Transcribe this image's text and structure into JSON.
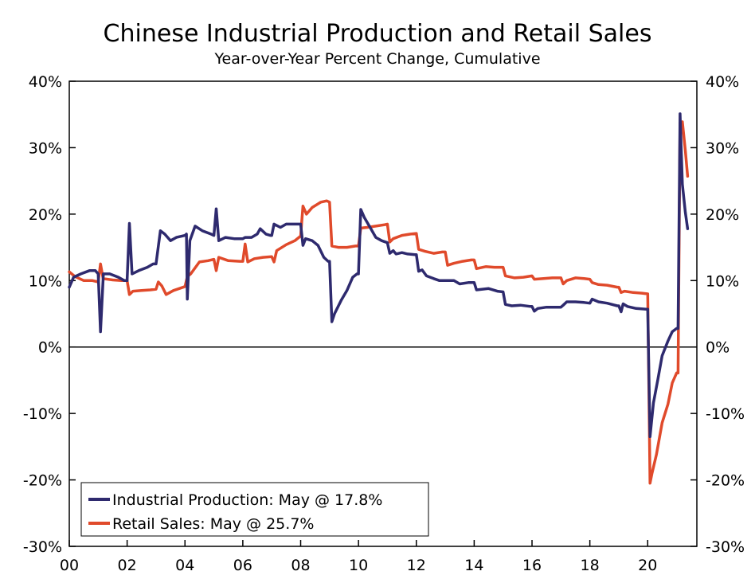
{
  "chart_data": {
    "type": "line",
    "title": "Chinese Industrial Production and Retail Sales",
    "subtitle": "Year-over-Year Percent Change, Cumulative",
    "xlabel": "",
    "ylabel": "",
    "xlim": [
      2000.0,
      2021.7
    ],
    "ylim": [
      -30,
      40
    ],
    "x_ticks": [
      {
        "value": 2000,
        "label": "00"
      },
      {
        "value": 2002,
        "label": "02"
      },
      {
        "value": 2004,
        "label": "04"
      },
      {
        "value": 2006,
        "label": "06"
      },
      {
        "value": 2008,
        "label": "08"
      },
      {
        "value": 2010,
        "label": "10"
      },
      {
        "value": 2012,
        "label": "12"
      },
      {
        "value": 2014,
        "label": "14"
      },
      {
        "value": 2016,
        "label": "16"
      },
      {
        "value": 2018,
        "label": "18"
      },
      {
        "value": 2020,
        "label": "20"
      }
    ],
    "y_ticks": [
      {
        "value": 40,
        "label": "40%"
      },
      {
        "value": 30,
        "label": "30%"
      },
      {
        "value": 20,
        "label": "20%"
      },
      {
        "value": 10,
        "label": "10%"
      },
      {
        "value": 0,
        "label": "0%"
      },
      {
        "value": -10,
        "label": "-10%"
      },
      {
        "value": -20,
        "label": "-20%"
      },
      {
        "value": -30,
        "label": "-30%"
      }
    ],
    "y_ticks_right": true,
    "grid": false,
    "zero_line": true,
    "legend_position": "bottom-left",
    "series": [
      {
        "name": "Industrial Production: May @ 17.8%",
        "color": "#2e2a6e",
        "points": [
          [
            2000.0,
            9.0
          ],
          [
            2000.15,
            10.5
          ],
          [
            2000.4,
            11.0
          ],
          [
            2000.7,
            11.5
          ],
          [
            2000.9,
            11.5
          ],
          [
            2001.0,
            11.0
          ],
          [
            2001.08,
            2.3
          ],
          [
            2001.18,
            11.0
          ],
          [
            2001.4,
            11.0
          ],
          [
            2001.7,
            10.5
          ],
          [
            2001.9,
            10.0
          ],
          [
            2002.0,
            10.0
          ],
          [
            2002.08,
            18.6
          ],
          [
            2002.17,
            11.0
          ],
          [
            2002.4,
            11.5
          ],
          [
            2002.7,
            12.0
          ],
          [
            2002.9,
            12.5
          ],
          [
            2003.0,
            12.5
          ],
          [
            2003.15,
            17.5
          ],
          [
            2003.3,
            17.0
          ],
          [
            2003.5,
            16.0
          ],
          [
            2003.7,
            16.5
          ],
          [
            2003.9,
            16.7
          ],
          [
            2004.0,
            16.8
          ],
          [
            2004.05,
            17.0
          ],
          [
            2004.08,
            7.2
          ],
          [
            2004.17,
            16.0
          ],
          [
            2004.35,
            18.2
          ],
          [
            2004.6,
            17.5
          ],
          [
            2004.9,
            17.0
          ],
          [
            2005.0,
            16.8
          ],
          [
            2005.08,
            20.8
          ],
          [
            2005.17,
            16.0
          ],
          [
            2005.4,
            16.5
          ],
          [
            2005.7,
            16.3
          ],
          [
            2006.0,
            16.3
          ],
          [
            2006.08,
            16.5
          ],
          [
            2006.3,
            16.5
          ],
          [
            2006.5,
            17.0
          ],
          [
            2006.6,
            17.8
          ],
          [
            2006.8,
            17.0
          ],
          [
            2006.95,
            16.8
          ],
          [
            2007.0,
            16.8
          ],
          [
            2007.08,
            18.5
          ],
          [
            2007.3,
            18.0
          ],
          [
            2007.5,
            18.5
          ],
          [
            2007.8,
            18.5
          ],
          [
            2008.0,
            18.5
          ],
          [
            2008.08,
            15.3
          ],
          [
            2008.17,
            16.3
          ],
          [
            2008.4,
            16.0
          ],
          [
            2008.6,
            15.3
          ],
          [
            2008.8,
            13.5
          ],
          [
            2008.95,
            12.9
          ],
          [
            2009.0,
            12.9
          ],
          [
            2009.08,
            3.8
          ],
          [
            2009.17,
            5.0
          ],
          [
            2009.4,
            7.0
          ],
          [
            2009.6,
            8.5
          ],
          [
            2009.8,
            10.5
          ],
          [
            2009.95,
            11.0
          ],
          [
            2010.0,
            11.0
          ],
          [
            2010.08,
            20.7
          ],
          [
            2010.2,
            19.5
          ],
          [
            2010.4,
            18.0
          ],
          [
            2010.6,
            16.5
          ],
          [
            2010.8,
            16.0
          ],
          [
            2011.0,
            15.7
          ],
          [
            2011.08,
            14.1
          ],
          [
            2011.2,
            14.5
          ],
          [
            2011.3,
            14.0
          ],
          [
            2011.5,
            14.2
          ],
          [
            2011.7,
            14.0
          ],
          [
            2011.95,
            13.9
          ],
          [
            2012.0,
            13.9
          ],
          [
            2012.08,
            11.4
          ],
          [
            2012.2,
            11.6
          ],
          [
            2012.35,
            10.7
          ],
          [
            2012.6,
            10.3
          ],
          [
            2012.8,
            10.0
          ],
          [
            2013.0,
            10.0
          ],
          [
            2013.3,
            10.0
          ],
          [
            2013.5,
            9.5
          ],
          [
            2013.8,
            9.7
          ],
          [
            2014.0,
            9.7
          ],
          [
            2014.08,
            8.6
          ],
          [
            2014.5,
            8.8
          ],
          [
            2014.8,
            8.4
          ],
          [
            2015.0,
            8.3
          ],
          [
            2015.08,
            6.4
          ],
          [
            2015.3,
            6.2
          ],
          [
            2015.6,
            6.3
          ],
          [
            2015.95,
            6.1
          ],
          [
            2016.0,
            6.1
          ],
          [
            2016.08,
            5.4
          ],
          [
            2016.2,
            5.8
          ],
          [
            2016.5,
            6.0
          ],
          [
            2016.8,
            6.0
          ],
          [
            2017.0,
            6.0
          ],
          [
            2017.08,
            6.3
          ],
          [
            2017.2,
            6.8
          ],
          [
            2017.5,
            6.8
          ],
          [
            2017.8,
            6.7
          ],
          [
            2018.0,
            6.6
          ],
          [
            2018.08,
            7.2
          ],
          [
            2018.3,
            6.8
          ],
          [
            2018.6,
            6.6
          ],
          [
            2018.95,
            6.2
          ],
          [
            2019.0,
            6.2
          ],
          [
            2019.08,
            5.3
          ],
          [
            2019.15,
            6.5
          ],
          [
            2019.3,
            6.1
          ],
          [
            2019.6,
            5.8
          ],
          [
            2019.95,
            5.7
          ],
          [
            2020.0,
            5.7
          ],
          [
            2020.08,
            -13.5
          ],
          [
            2020.2,
            -8.4
          ],
          [
            2020.35,
            -4.9
          ],
          [
            2020.5,
            -1.3
          ],
          [
            2020.7,
            0.9
          ],
          [
            2020.85,
            2.3
          ],
          [
            2021.0,
            2.8
          ],
          [
            2021.05,
            2.8
          ],
          [
            2021.12,
            35.1
          ],
          [
            2021.2,
            24.5
          ],
          [
            2021.3,
            20.3
          ],
          [
            2021.38,
            17.8
          ]
        ]
      },
      {
        "name": "Retail Sales: May @ 25.7%",
        "color": "#e04a2b",
        "points": [
          [
            2000.0,
            11.3
          ],
          [
            2000.2,
            10.6
          ],
          [
            2000.5,
            10.0
          ],
          [
            2000.8,
            10.0
          ],
          [
            2001.0,
            9.8
          ],
          [
            2001.08,
            12.5
          ],
          [
            2001.17,
            10.3
          ],
          [
            2001.5,
            10.1
          ],
          [
            2001.8,
            10.0
          ],
          [
            2002.0,
            10.0
          ],
          [
            2002.08,
            7.9
          ],
          [
            2002.2,
            8.4
          ],
          [
            2002.5,
            8.5
          ],
          [
            2002.8,
            8.6
          ],
          [
            2003.0,
            8.7
          ],
          [
            2003.08,
            9.8
          ],
          [
            2003.2,
            9.2
          ],
          [
            2003.35,
            7.9
          ],
          [
            2003.6,
            8.5
          ],
          [
            2003.8,
            8.8
          ],
          [
            2004.0,
            9.1
          ],
          [
            2004.08,
            10.6
          ],
          [
            2004.2,
            11.0
          ],
          [
            2004.5,
            12.8
          ],
          [
            2004.8,
            13.0
          ],
          [
            2005.0,
            13.2
          ],
          [
            2005.08,
            11.5
          ],
          [
            2005.17,
            13.5
          ],
          [
            2005.5,
            13.0
          ],
          [
            2005.9,
            12.9
          ],
          [
            2006.0,
            12.9
          ],
          [
            2006.08,
            15.5
          ],
          [
            2006.17,
            12.8
          ],
          [
            2006.4,
            13.3
          ],
          [
            2006.7,
            13.5
          ],
          [
            2007.0,
            13.6
          ],
          [
            2007.08,
            12.8
          ],
          [
            2007.17,
            14.5
          ],
          [
            2007.5,
            15.4
          ],
          [
            2007.8,
            16.0
          ],
          [
            2008.0,
            16.7
          ],
          [
            2008.08,
            21.2
          ],
          [
            2008.2,
            20.0
          ],
          [
            2008.4,
            21.0
          ],
          [
            2008.7,
            21.8
          ],
          [
            2008.9,
            22.0
          ],
          [
            2009.0,
            21.8
          ],
          [
            2009.08,
            15.2
          ],
          [
            2009.3,
            15.0
          ],
          [
            2009.6,
            15.0
          ],
          [
            2009.9,
            15.2
          ],
          [
            2010.0,
            15.2
          ],
          [
            2010.08,
            17.9
          ],
          [
            2010.3,
            18.0
          ],
          [
            2010.6,
            18.2
          ],
          [
            2010.9,
            18.4
          ],
          [
            2011.0,
            18.5
          ],
          [
            2011.08,
            15.8
          ],
          [
            2011.2,
            16.3
          ],
          [
            2011.5,
            16.8
          ],
          [
            2011.8,
            17.0
          ],
          [
            2012.0,
            17.1
          ],
          [
            2012.08,
            14.7
          ],
          [
            2012.3,
            14.4
          ],
          [
            2012.6,
            14.1
          ],
          [
            2012.9,
            14.3
          ],
          [
            2013.0,
            14.3
          ],
          [
            2013.08,
            12.3
          ],
          [
            2013.3,
            12.6
          ],
          [
            2013.6,
            12.9
          ],
          [
            2013.9,
            13.1
          ],
          [
            2014.0,
            13.1
          ],
          [
            2014.08,
            11.8
          ],
          [
            2014.4,
            12.1
          ],
          [
            2014.7,
            12.0
          ],
          [
            2015.0,
            12.0
          ],
          [
            2015.08,
            10.7
          ],
          [
            2015.4,
            10.4
          ],
          [
            2015.7,
            10.5
          ],
          [
            2016.0,
            10.7
          ],
          [
            2016.08,
            10.2
          ],
          [
            2016.4,
            10.3
          ],
          [
            2016.7,
            10.4
          ],
          [
            2017.0,
            10.4
          ],
          [
            2017.08,
            9.5
          ],
          [
            2017.2,
            10.0
          ],
          [
            2017.5,
            10.4
          ],
          [
            2017.8,
            10.3
          ],
          [
            2018.0,
            10.2
          ],
          [
            2018.08,
            9.7
          ],
          [
            2018.3,
            9.4
          ],
          [
            2018.6,
            9.3
          ],
          [
            2018.95,
            9.0
          ],
          [
            2019.0,
            9.0
          ],
          [
            2019.08,
            8.2
          ],
          [
            2019.2,
            8.4
          ],
          [
            2019.5,
            8.2
          ],
          [
            2019.8,
            8.1
          ],
          [
            2020.0,
            8.0
          ],
          [
            2020.08,
            -20.5
          ],
          [
            2020.15,
            -19.0
          ],
          [
            2020.3,
            -16.2
          ],
          [
            2020.5,
            -11.4
          ],
          [
            2020.7,
            -8.6
          ],
          [
            2020.85,
            -5.4
          ],
          [
            2021.0,
            -3.9
          ],
          [
            2021.05,
            -3.9
          ],
          [
            2021.12,
            33.8
          ],
          [
            2021.2,
            33.9
          ],
          [
            2021.3,
            29.6
          ],
          [
            2021.38,
            25.7
          ]
        ]
      }
    ]
  }
}
